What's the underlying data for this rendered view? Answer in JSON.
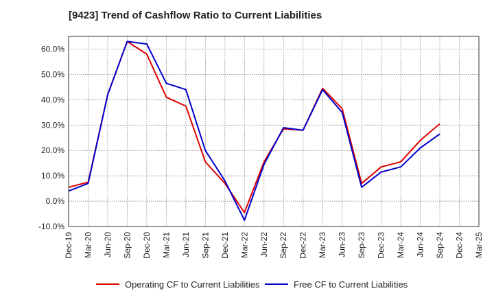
{
  "chart_data": {
    "type": "line",
    "title": "[9423]  Trend of Cashflow Ratio to Current Liabilities",
    "xlabel": "",
    "ylabel": "",
    "x_ticks": [
      "Dec-19",
      "Mar-20",
      "Jun-20",
      "Sep-20",
      "Dec-20",
      "Mar-21",
      "Jun-21",
      "Sep-21",
      "Dec-21",
      "Mar-22",
      "Jun-22",
      "Sep-22",
      "Dec-22",
      "Mar-23",
      "Jun-23",
      "Sep-23",
      "Dec-23",
      "Mar-24",
      "Jun-24",
      "Sep-24",
      "Dec-24",
      "Mar-25"
    ],
    "y_ticks": [
      "-10.0%",
      "0.0%",
      "10.0%",
      "20.0%",
      "30.0%",
      "40.0%",
      "50.0%",
      "60.0%"
    ],
    "ylim": [
      -10,
      65
    ],
    "grid": true,
    "legend_position": "bottom",
    "series": [
      {
        "name": "Operating CF to Current Liabilities",
        "color": "#e00000",
        "x": [
          "Dec-19",
          "Mar-20",
          "Jun-20",
          "Sep-20",
          "Dec-20",
          "Mar-21",
          "Jun-21",
          "Sep-21",
          "Dec-21",
          "Mar-22",
          "Jun-22",
          "Sep-22",
          "Dec-22",
          "Mar-23",
          "Jun-23",
          "Sep-23",
          "Dec-23",
          "Mar-24",
          "Jun-24",
          "Sep-24"
        ],
        "values": [
          5.5,
          7.5,
          42.0,
          63.0,
          58.0,
          41.0,
          37.5,
          15.5,
          7.0,
          -4.5,
          15.5,
          28.5,
          28.0,
          44.5,
          36.5,
          7.0,
          13.5,
          15.5,
          24.0,
          30.5
        ]
      },
      {
        "name": "Free CF to Current Liabilities",
        "color": "#0000cc",
        "x": [
          "Dec-19",
          "Mar-20",
          "Jun-20",
          "Sep-20",
          "Dec-20",
          "Mar-21",
          "Jun-21",
          "Sep-21",
          "Dec-21",
          "Mar-22",
          "Jun-22",
          "Sep-22",
          "Dec-22",
          "Mar-23",
          "Jun-23",
          "Sep-23",
          "Dec-23",
          "Mar-24",
          "Jun-24",
          "Sep-24"
        ],
        "values": [
          4.0,
          7.0,
          42.0,
          63.0,
          62.0,
          46.5,
          44.0,
          20.0,
          8.0,
          -7.5,
          14.5,
          29.0,
          28.0,
          44.0,
          35.0,
          5.5,
          11.5,
          13.5,
          21.0,
          26.5
        ]
      }
    ]
  }
}
